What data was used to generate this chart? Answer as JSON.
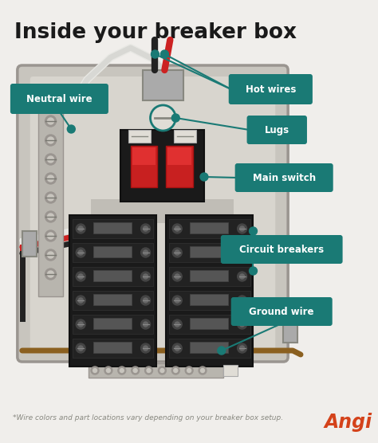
{
  "title": "Inside your breaker box",
  "title_fontsize": 19,
  "title_color": "#1a1a1a",
  "background_color": "#f0eeeb",
  "label_bg": "#1a7a75",
  "footnote": "*Wire colors and part locations vary depending on your breaker box setup.",
  "footnote_fontsize": 6.5,
  "logo_text": "Angi",
  "logo_color": "#d4421a",
  "logo_fontsize": 17
}
